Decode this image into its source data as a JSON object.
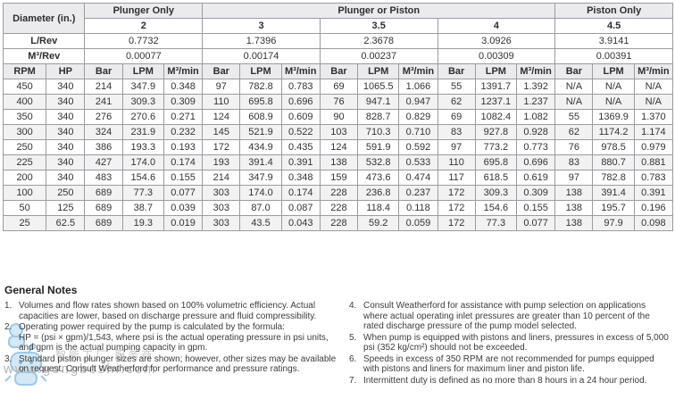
{
  "table": {
    "diameter_label": "Diameter (in.)",
    "group_headers": [
      {
        "label": "Plunger Only"
      },
      {
        "label": "Plunger or Piston"
      },
      {
        "label": "Piston Only"
      }
    ],
    "sizes": [
      "2",
      "3",
      "3.5",
      "4",
      "4.5"
    ],
    "l_per_rev": {
      "label": "L/Rev",
      "values": [
        "0.7732",
        "1.7396",
        "2.3678",
        "3.0926",
        "3.9141"
      ]
    },
    "m3_per_rev": {
      "label": "M³/Rev",
      "values": [
        "0.00077",
        "0.00174",
        "0.00237",
        "0.00309",
        "0.00391"
      ]
    },
    "col_headers": {
      "rpm": "RPM",
      "hp": "HP",
      "units": [
        "Bar",
        "LPM",
        "M³/min"
      ]
    },
    "rows": [
      {
        "rpm": "450",
        "hp": "340",
        "values": [
          "214",
          "347.9",
          "0.348",
          "97",
          "782.8",
          "0.783",
          "69",
          "1065.5",
          "1.066",
          "55",
          "1391.7",
          "1.392",
          "N/A",
          "N/A",
          "N/A"
        ]
      },
      {
        "rpm": "400",
        "hp": "340",
        "values": [
          "241",
          "309.3",
          "0.309",
          "110",
          "695.8",
          "0.696",
          "76",
          "947.1",
          "0.947",
          "62",
          "1237.1",
          "1.237",
          "N/A",
          "N/A",
          "N/A"
        ]
      },
      {
        "rpm": "350",
        "hp": "340",
        "values": [
          "276",
          "270.6",
          "0.271",
          "124",
          "608.9",
          "0.609",
          "90",
          "828.7",
          "0.829",
          "69",
          "1082.4",
          "1.082",
          "55",
          "1369.9",
          "1.370"
        ]
      },
      {
        "rpm": "300",
        "hp": "340",
        "values": [
          "324",
          "231.9",
          "0.232",
          "145",
          "521.9",
          "0.522",
          "103",
          "710.3",
          "0.710",
          "83",
          "927.8",
          "0.928",
          "62",
          "1174.2",
          "1.174"
        ]
      },
      {
        "rpm": "250",
        "hp": "340",
        "values": [
          "386",
          "193.3",
          "0.193",
          "172",
          "434.9",
          "0.435",
          "124",
          "591.9",
          "0.592",
          "97",
          "773.2",
          "0.773",
          "76",
          "978.5",
          "0.979"
        ]
      },
      {
        "rpm": "225",
        "hp": "340",
        "values": [
          "427",
          "174.0",
          "0.174",
          "193",
          "391.4",
          "0.391",
          "138",
          "532.8",
          "0.533",
          "110",
          "695.8",
          "0.696",
          "83",
          "880.7",
          "0.881"
        ]
      },
      {
        "rpm": "200",
        "hp": "340",
        "values": [
          "483",
          "154.6",
          "0.155",
          "214",
          "347.9",
          "0.348",
          "159",
          "473.6",
          "0.474",
          "117",
          "618.5",
          "0.619",
          "97",
          "782.8",
          "0.783"
        ]
      },
      {
        "rpm": "100",
        "hp": "250",
        "values": [
          "689",
          "77.3",
          "0.077",
          "303",
          "174.0",
          "0.174",
          "228",
          "236.8",
          "0.237",
          "172",
          "309.3",
          "0.309",
          "138",
          "391.4",
          "0.391"
        ]
      },
      {
        "rpm": "50",
        "hp": "125",
        "values": [
          "689",
          "38.7",
          "0.039",
          "303",
          "87.0",
          "0.087",
          "228",
          "118.4",
          "0.118",
          "172",
          "154.6",
          "0.155",
          "138",
          "195.7",
          "0.196"
        ]
      },
      {
        "rpm": "25",
        "hp": "62.5",
        "values": [
          "689",
          "19.3",
          "0.019",
          "303",
          "43.5",
          "0.043",
          "228",
          "59.2",
          "0.059",
          "172",
          "77.3",
          "0.077",
          "138",
          "97.9",
          "0.098"
        ]
      }
    ]
  },
  "notes": {
    "title": "General Notes",
    "left": [
      {
        "num": "1.",
        "text": "Volumes and flow rates shown based on 100% volumetric efficiency. Actual capacities are lower, based on discharge pressure and fluid compressibility."
      },
      {
        "num": "2.",
        "text": "Operating power required by the pump is calculated by the formula:\nHP = (psi × gpm)/1,543, where psi is the actual operating pressure in psi units, and gpm is the actual pumping capacity in gpm."
      },
      {
        "num": "3.",
        "text": "Standard piston plunger sizes are shown; however, other sizes may be available on request. Consult Weatherford for performance and pressure ratings."
      }
    ],
    "right": [
      {
        "num": "4.",
        "text": "Consult Weatherford for assistance with pump selection on applications where actual operating inlet pressures are greater than 10 percent of the rated discharge pressure of the pump model selected."
      },
      {
        "num": "5.",
        "text": "When pump is equipped with pistons and liners, pressures in excess of 5,000 psi (352 kg/cm²) should not be exceeded."
      },
      {
        "num": "6.",
        "text": "Speeds in excess of 350 RPM are not recommended for pumps equipped with pistons and liners for maximum liner and piston life."
      },
      {
        "num": "7.",
        "text": "Intermittent duty is defined as no more than 8 hours in a 24 hour period."
      }
    ]
  },
  "watermark": {
    "cn_text": "智能工厂 服务商",
    "url": "www.gongboshi.com",
    "blue": "#cde4f4",
    "blue_stroke": "#8fc0e2",
    "gray": "#b5b5b5"
  },
  "colors": {
    "header_bg": "#ebebee",
    "alt_row_bg": "#f2f2f2",
    "border": "#9b9ba1",
    "text": "#333333"
  }
}
